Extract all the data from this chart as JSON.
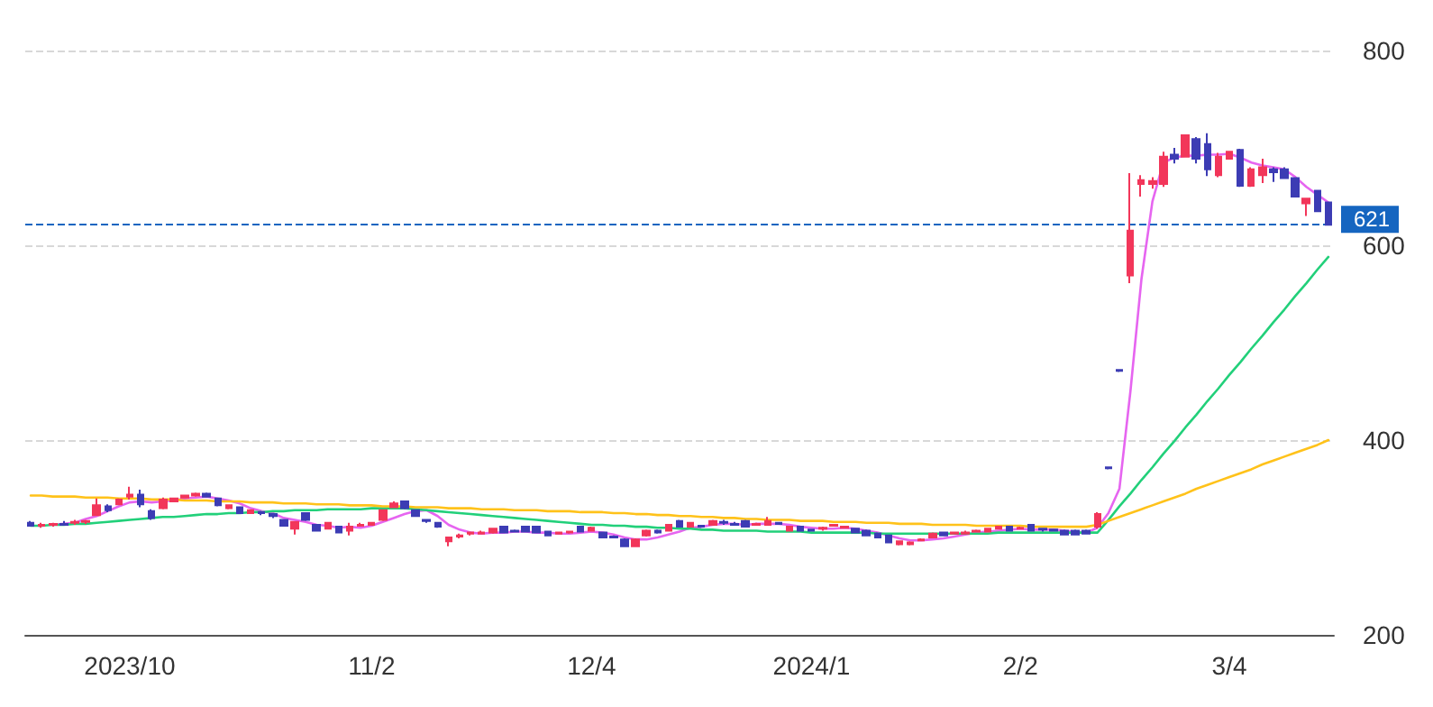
{
  "chart_data": {
    "type": "candlestick",
    "categories": [
      null,
      null,
      null,
      null,
      null,
      null,
      null,
      null,
      null,
      "2023/10",
      null,
      null,
      null,
      null,
      null,
      null,
      null,
      null,
      null,
      null,
      null,
      null,
      null,
      null,
      null,
      null,
      null,
      null,
      null,
      null,
      null,
      "11/2",
      null,
      null,
      null,
      null,
      null,
      null,
      null,
      null,
      null,
      null,
      null,
      null,
      null,
      null,
      null,
      null,
      null,
      null,
      null,
      "12/4",
      null,
      null,
      null,
      null,
      null,
      null,
      null,
      null,
      null,
      null,
      null,
      null,
      null,
      null,
      null,
      null,
      null,
      null,
      null,
      "2024/1",
      null,
      null,
      null,
      null,
      null,
      null,
      null,
      null,
      null,
      null,
      null,
      null,
      null,
      null,
      null,
      null,
      null,
      null,
      "2/2",
      null,
      null,
      null,
      null,
      null,
      null,
      null,
      null,
      null,
      null,
      null,
      null,
      null,
      null,
      null,
      null,
      null,
      null,
      "3/4",
      null,
      null,
      null,
      null,
      null,
      null,
      null,
      null,
      null
    ],
    "series": [
      {
        "ohlc": [
          [
            315,
            317,
            311,
            312
          ],
          [
            312,
            315,
            310,
            313
          ],
          [
            313,
            315,
            311,
            314
          ],
          [
            314,
            317,
            312,
            313
          ],
          [
            315,
            318,
            313,
            316
          ],
          [
            316,
            318,
            314,
            317
          ],
          [
            323,
            340,
            322,
            333
          ],
          [
            332,
            334,
            326,
            328
          ],
          [
            334,
            340,
            333,
            339
          ],
          [
            342,
            352,
            339,
            344
          ],
          [
            344,
            349,
            331,
            334
          ],
          [
            327,
            329,
            318,
            320
          ],
          [
            330,
            341,
            329,
            339
          ],
          [
            337,
            341,
            336,
            340
          ],
          [
            341,
            344,
            340,
            343
          ],
          [
            343,
            346,
            342,
            345
          ],
          [
            345,
            346,
            341,
            342
          ],
          [
            340,
            341,
            332,
            333
          ],
          [
            330,
            334,
            329,
            333
          ],
          [
            331,
            332,
            324,
            325
          ],
          [
            325,
            329,
            324,
            328
          ],
          [
            326,
            327,
            323,
            325
          ],
          [
            324,
            325,
            320,
            322
          ],
          [
            318,
            319,
            311,
            312
          ],
          [
            309,
            317,
            303,
            316
          ],
          [
            325,
            326,
            317,
            318
          ],
          [
            313,
            314,
            306,
            307
          ],
          [
            309,
            316,
            308,
            315
          ],
          [
            311,
            312,
            305,
            305
          ],
          [
            307,
            315,
            302,
            311
          ],
          [
            312,
            315,
            311,
            313
          ],
          [
            313,
            316,
            312,
            315
          ],
          [
            318,
            329,
            317,
            328
          ],
          [
            331,
            337,
            330,
            335
          ],
          [
            337,
            338,
            329,
            330
          ],
          [
            328,
            329,
            321,
            322
          ],
          [
            318,
            319,
            315,
            317
          ],
          [
            315,
            316,
            310,
            311
          ],
          [
            296,
            301,
            291,
            300
          ],
          [
            301,
            304,
            299,
            302
          ],
          [
            304,
            306,
            302,
            305
          ],
          [
            304,
            307,
            303,
            305
          ],
          [
            305,
            310,
            304,
            309
          ],
          [
            311,
            312,
            305,
            305
          ],
          [
            307,
            308,
            305,
            306
          ],
          [
            311,
            312,
            306,
            306
          ],
          [
            311,
            312,
            305,
            305
          ],
          [
            306,
            307,
            302,
            302
          ],
          [
            304,
            306,
            303,
            305
          ],
          [
            305,
            307,
            304,
            306
          ],
          [
            311,
            312,
            306,
            306
          ],
          [
            307,
            311,
            306,
            310
          ],
          [
            305,
            306,
            299,
            300
          ],
          [
            301,
            302,
            299,
            300
          ],
          [
            298,
            299,
            290,
            291
          ],
          [
            291,
            299,
            290,
            298
          ],
          [
            302,
            308,
            301,
            307
          ],
          [
            307,
            308,
            304,
            305
          ],
          [
            307,
            314,
            306,
            313
          ],
          [
            317,
            318,
            311,
            311
          ],
          [
            311,
            316,
            310,
            315
          ],
          [
            312,
            313,
            310,
            311
          ],
          [
            313,
            318,
            312,
            317
          ],
          [
            316,
            318,
            313,
            315
          ],
          [
            314,
            316,
            312,
            313
          ],
          [
            317,
            318,
            311,
            311
          ],
          [
            313,
            315,
            312,
            314
          ],
          [
            313,
            321,
            312,
            317
          ],
          [
            315,
            316,
            313,
            314
          ],
          [
            307,
            312,
            306,
            311
          ],
          [
            311,
            312,
            307,
            307
          ],
          [
            308,
            309,
            306,
            307
          ],
          [
            309,
            311,
            307,
            310
          ],
          [
            312,
            314,
            311,
            313
          ],
          [
            310,
            312,
            309,
            311
          ],
          [
            309,
            310,
            305,
            305
          ],
          [
            307,
            308,
            302,
            302
          ],
          [
            304,
            305,
            300,
            300
          ],
          [
            302,
            303,
            295,
            295
          ],
          [
            293,
            297,
            292,
            296
          ],
          [
            293,
            296,
            292,
            295
          ],
          [
            297,
            299,
            296,
            298
          ],
          [
            300,
            305,
            299,
            304
          ],
          [
            305,
            306,
            302,
            302
          ],
          [
            304,
            306,
            303,
            305
          ],
          [
            304,
            307,
            303,
            305
          ],
          [
            306,
            308,
            305,
            307
          ],
          [
            306,
            310,
            305,
            309
          ],
          [
            309,
            312,
            308,
            311
          ],
          [
            311,
            312,
            307,
            307
          ],
          [
            309,
            311,
            308,
            310
          ],
          [
            313,
            314,
            307,
            307
          ],
          [
            309,
            310,
            306,
            308
          ],
          [
            308,
            309,
            306,
            307
          ],
          [
            307,
            308,
            303,
            303
          ],
          [
            307,
            308,
            303,
            303
          ],
          [
            307,
            308,
            303,
            304
          ],
          [
            311,
            326,
            309,
            324
          ],
          [
            372,
            373,
            370,
            371
          ],
          [
            472,
            473,
            470,
            471
          ],
          [
            569,
            674,
            561,
            615
          ],
          [
            663,
            672,
            650,
            667
          ],
          [
            663,
            670,
            658,
            666
          ],
          [
            663,
            696,
            660,
            691
          ],
          [
            693,
            700,
            684,
            689
          ],
          [
            691,
            713,
            690,
            713
          ],
          [
            709,
            711,
            684,
            689
          ],
          [
            704,
            715,
            671,
            678
          ],
          [
            672,
            695,
            670,
            691
          ],
          [
            689,
            696,
            688,
            696
          ],
          [
            698,
            699,
            660,
            661
          ],
          [
            661,
            680,
            660,
            678
          ],
          [
            672,
            689,
            664,
            680
          ],
          [
            678,
            680,
            665,
            675
          ],
          [
            678,
            680,
            668,
            669
          ],
          [
            669,
            670,
            650,
            650
          ],
          [
            643,
            648,
            630,
            648
          ],
          [
            656,
            657,
            634,
            635
          ],
          [
            644,
            645,
            621,
            621
          ]
        ],
        "colors": [
          "#3c3cb4",
          "#f2365a",
          "#f2365a",
          "#3c3cb4",
          "#f2365a",
          "#f2365a",
          "#f2365a",
          "#3c3cb4",
          "#f2365a",
          "#f2365a",
          "#3c3cb4",
          "#3c3cb4",
          "#f2365a",
          "#f2365a",
          "#f2365a",
          "#f2365a",
          "#3c3cb4",
          "#3c3cb4",
          "#f2365a",
          "#3c3cb4",
          "#f2365a",
          "#3c3cb4",
          "#3c3cb4",
          "#3c3cb4",
          "#f2365a",
          "#3c3cb4",
          "#3c3cb4",
          "#f2365a",
          "#3c3cb4",
          "#f2365a",
          "#f2365a",
          "#f2365a",
          "#f2365a",
          "#f2365a",
          "#3c3cb4",
          "#3c3cb4",
          "#3c3cb4",
          "#3c3cb4",
          "#f2365a",
          "#f2365a",
          "#f2365a",
          "#f2365a",
          "#f2365a",
          "#3c3cb4",
          "#3c3cb4",
          "#3c3cb4",
          "#3c3cb4",
          "#3c3cb4",
          "#f2365a",
          "#f2365a",
          "#3c3cb4",
          "#f2365a",
          "#3c3cb4",
          "#3c3cb4",
          "#3c3cb4",
          "#f2365a",
          "#f2365a",
          "#3c3cb4",
          "#f2365a",
          "#3c3cb4",
          "#f2365a",
          "#3c3cb4",
          "#f2365a",
          "#3c3cb4",
          "#3c3cb4",
          "#3c3cb4",
          "#f2365a",
          "#f2365a",
          "#3c3cb4",
          "#f2365a",
          "#3c3cb4",
          "#3c3cb4",
          "#f2365a",
          "#f2365a",
          "#f2365a",
          "#3c3cb4",
          "#3c3cb4",
          "#3c3cb4",
          "#3c3cb4",
          "#f2365a",
          "#f2365a",
          "#f2365a",
          "#f2365a",
          "#3c3cb4",
          "#f2365a",
          "#f2365a",
          "#f2365a",
          "#f2365a",
          "#f2365a",
          "#3c3cb4",
          "#f2365a",
          "#3c3cb4",
          "#3c3cb4",
          "#3c3cb4",
          "#3c3cb4",
          "#3c3cb4",
          "#3c3cb4",
          "#f2365a",
          "#3c3cb4",
          "#3c3cb4",
          "#f2365a",
          "#f2365a",
          "#f2365a",
          "#f2365a",
          "#3c3cb4",
          "#f2365a",
          "#3c3cb4",
          "#3c3cb4",
          "#f2365a",
          "#f2365a",
          "#3c3cb4",
          "#f2365a",
          "#f2365a",
          "#3c3cb4",
          "#3c3cb4",
          "#3c3cb4",
          "#f2365a",
          "#3c3cb4",
          "#3c3cb4"
        ]
      },
      {
        "type": "line",
        "color": "#e665f0",
        "values": [
          null,
          null,
          313,
          314,
          315,
          319,
          322,
          327,
          332,
          336,
          337,
          336,
          337,
          338,
          340,
          341,
          342,
          340,
          338,
          335,
          330,
          327,
          325,
          320,
          318,
          316,
          313,
          312,
          310,
          311,
          310,
          312,
          316,
          320,
          324,
          327,
          328,
          322,
          313,
          308,
          305,
          304,
          305,
          305,
          306,
          306,
          305,
          305,
          304,
          304,
          305,
          306,
          305,
          303,
          300,
          298,
          298,
          300,
          303,
          306,
          310,
          311,
          313,
          314,
          314,
          313,
          314,
          314,
          314,
          313,
          311,
          310,
          309,
          309,
          310,
          309,
          307,
          305,
          302,
          299,
          297,
          297,
          298,
          299,
          301,
          303,
          305,
          306,
          307,
          308,
          309,
          308,
          308,
          308,
          307,
          306,
          305,
          310,
          325,
          350,
          450,
          565,
          645,
          685,
          690,
          692,
          692,
          693,
          693,
          694,
          690,
          685,
          682,
          680,
          678,
          670,
          660,
          652,
          644
        ]
      },
      {
        "type": "line",
        "color": "#22d07a",
        "values": [
          312,
          312,
          313,
          313,
          314,
          314,
          315,
          316,
          317,
          318,
          319,
          320,
          321,
          321,
          322,
          323,
          324,
          324,
          325,
          325,
          326,
          326,
          327,
          327,
          328,
          328,
          328,
          329,
          329,
          329,
          329,
          330,
          330,
          330,
          330,
          329,
          328,
          327,
          326,
          325,
          324,
          323,
          322,
          321,
          320,
          319,
          318,
          317,
          316,
          315,
          314,
          313,
          313,
          312,
          312,
          311,
          311,
          310,
          310,
          309,
          309,
          308,
          308,
          307,
          307,
          307,
          307,
          306,
          306,
          306,
          306,
          305,
          305,
          305,
          305,
          305,
          305,
          304,
          304,
          304,
          304,
          304,
          304,
          304,
          304,
          304,
          304,
          304,
          305,
          305,
          305,
          305,
          305,
          305,
          305,
          305,
          305,
          305,
          318,
          332,
          345,
          359,
          372,
          386,
          399,
          413,
          426,
          440,
          453,
          467,
          480,
          494,
          507,
          521,
          534,
          548,
          561,
          575,
          588
        ]
      },
      {
        "type": "line",
        "color": "#ffc21a",
        "values": [
          343,
          343,
          342,
          342,
          342,
          341,
          341,
          341,
          340,
          340,
          340,
          339,
          339,
          339,
          338,
          338,
          338,
          337,
          337,
          337,
          336,
          336,
          336,
          335,
          335,
          335,
          334,
          334,
          334,
          333,
          333,
          333,
          332,
          332,
          332,
          331,
          331,
          331,
          330,
          330,
          330,
          329,
          329,
          329,
          328,
          328,
          328,
          327,
          327,
          327,
          326,
          326,
          326,
          325,
          325,
          324,
          324,
          323,
          323,
          322,
          322,
          321,
          321,
          320,
          320,
          319,
          319,
          318,
          318,
          318,
          317,
          317,
          317,
          316,
          316,
          316,
          315,
          315,
          315,
          314,
          314,
          314,
          313,
          313,
          313,
          313,
          312,
          312,
          312,
          312,
          312,
          311,
          311,
          311,
          311,
          311,
          311,
          313,
          317,
          321,
          325,
          329,
          333,
          337,
          341,
          345,
          350,
          354,
          358,
          362,
          366,
          370,
          375,
          379,
          383,
          387,
          391,
          395,
          400
        ]
      }
    ],
    "ylim": [
      200,
      800
    ],
    "yticks": [
      200,
      400,
      600,
      800
    ],
    "ref_lines": [
      {
        "axis": "y",
        "value": 621,
        "label": "621",
        "color": "#1565c0",
        "line_style": "dashed"
      }
    ],
    "grid": "y",
    "marker": "none",
    "line_style": "solid"
  }
}
